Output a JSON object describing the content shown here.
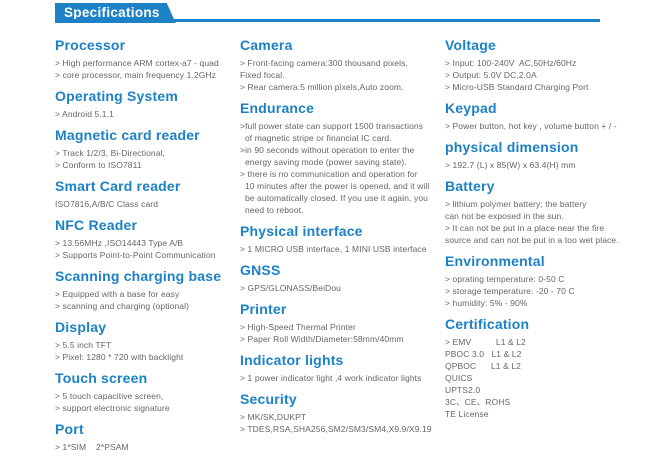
{
  "page": {
    "title": "Specifications"
  },
  "colors": {
    "accent": "#1c81c5",
    "body_text": "#666666"
  },
  "columns": [
    {
      "name": "left",
      "sections": [
        {
          "heading": "Processor",
          "lines": [
            "> High performance ARM cortex-a7 - quad",
            "> core processor, main frequency 1.2GHz"
          ]
        },
        {
          "heading": "Operating System",
          "lines": [
            "> Android 5.1.1"
          ]
        },
        {
          "heading": "Magnetic card reader",
          "lines": [
            "> Track 1/2/3, Bi-Directional,",
            "> Conform to ISO7811"
          ]
        },
        {
          "heading": "Smart Card reader",
          "lines": [
            "ISO7816,A/B/C Class card"
          ]
        },
        {
          "heading": "NFC Reader",
          "lines": [
            "> 13.56MHz ,ISO14443 Type A/B",
            "> Supports Point-to-Point Communication"
          ]
        },
        {
          "heading": "Scanning charging base",
          "lines": [
            "> Equipped with a base for easy",
            "> scanning and charging (optional)"
          ]
        },
        {
          "heading": "Display",
          "lines": [
            "> 5.5 inch TFT",
            "> Pixel: 1280 * 720 with backlight"
          ]
        },
        {
          "heading": "Touch screen",
          "lines": [
            "> 5 touch capacitive screen,",
            "> support electronic signature"
          ]
        },
        {
          "heading": "Port",
          "lines": [
            "> 1*SIM    2*PSAM"
          ]
        }
      ]
    },
    {
      "name": "middle",
      "sections": [
        {
          "heading": "Camera",
          "lines": [
            "> Front-facing camera:300 thousand pixels,",
            "Fixed focal.",
            "> Rear camera:5 million pixels,Auto zoom."
          ]
        },
        {
          "heading": "Endurance",
          "lines": [
            ">full power state can support 1500 transactions",
            "  of magnetic stripe or financial IC card.",
            ">in 90 seconds without operation to enter the",
            "  energy saving mode (power saving state).",
            "> there is no communication and operation for",
            "  10 minutes after the power is opened, and it will",
            "  be automatically closed. If you use it again, you",
            "  need to reboot."
          ]
        },
        {
          "heading": "Physical interface",
          "lines": [
            "> 1 MICRO USB interface, 1 MINI USB interface"
          ]
        },
        {
          "heading": "GNSS",
          "lines": [
            "> GPS/GLONASS/BeiDou"
          ]
        },
        {
          "heading": "Printer",
          "lines": [
            "> High-Speed Thermal Printer",
            "> Paper Roll Width/Diameter:58mm/40mm"
          ]
        },
        {
          "heading": "Indicator lights",
          "lines": [
            "> 1 power indicator light ,4 work indicator lights"
          ]
        },
        {
          "heading": "Security",
          "lines": [
            "> MK/SK,DUKPT",
            "> TDES,RSA,SHA256,SM2/SM3/SM4,X9.9/X9.19"
          ]
        }
      ]
    },
    {
      "name": "right",
      "sections": [
        {
          "heading": "Voltage",
          "lines": [
            "> Input: 100-240V  AC,50Hz/60Hz",
            "> Output: 5.0V DC,2.0A",
            "> Micro-USB Standard Charging Port"
          ]
        },
        {
          "heading": "Keypad",
          "lines": [
            "> Power button, hot key , volume button + / -"
          ]
        },
        {
          "heading": "physical dimension",
          "lines": [
            "> 192.7 (L) x 85(W) x 63.4(H) mm"
          ]
        },
        {
          "heading": "Battery",
          "lines": [
            "> lithium polymer battery; the battery",
            "can not be exposed in the sun.",
            "> It can not be put in a place near the fire",
            "source and can not be put in a too wet place."
          ]
        },
        {
          "heading": "Environmental",
          "lines": [
            "> oprating temperature: 0-50 C",
            "> storage temperature: -20 - 70 C",
            "> humidity: 5% - 90%"
          ]
        },
        {
          "heading": "Certification",
          "lines": [
            "> EMV          L1 & L2",
            "PBOC 3.0   L1 & L2",
            "QPBOC      L1 & L2",
            "QUICS",
            "UPTS2.0",
            "3C、CE、ROHS",
            "TE License"
          ]
        }
      ]
    }
  ]
}
